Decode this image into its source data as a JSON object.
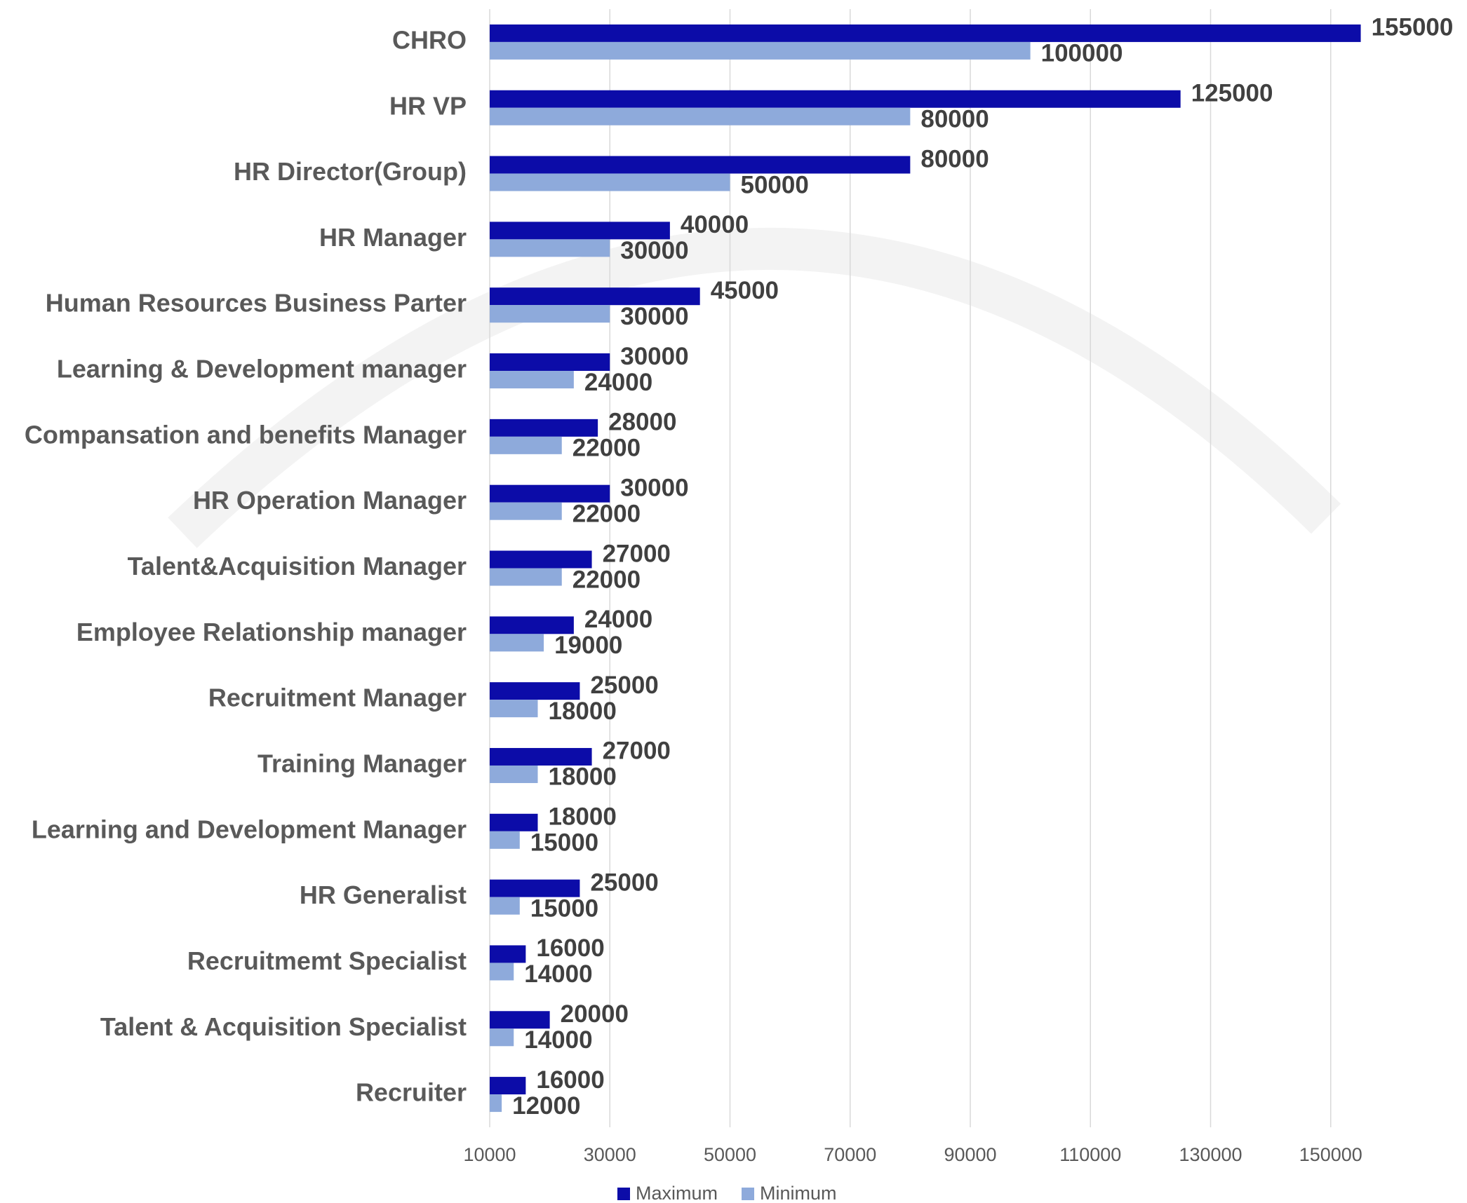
{
  "chart_data": {
    "type": "hbar",
    "categories": [
      "CHRO",
      "HR VP",
      "HR Director(Group)",
      "HR Manager",
      "Human Resources Business Parter",
      "Learning & Development manager",
      "Compansation and benefits Manager",
      "HR Operation Manager",
      "Talent&Acquisition Manager",
      "Employee Relationship manager",
      "Recruitment Manager",
      "Training Manager",
      "Learning and Development Manager",
      "HR Generalist",
      "Recruitmemt Specialist",
      "Talent & Acquisition Specialist",
      "Recruiter"
    ],
    "series": [
      {
        "name": "Maximum",
        "color": "#0c0ca8",
        "values": [
          155000,
          125000,
          80000,
          40000,
          45000,
          30000,
          28000,
          30000,
          27000,
          24000,
          25000,
          27000,
          18000,
          25000,
          16000,
          20000,
          16000
        ]
      },
      {
        "name": "Minimum",
        "color": "#8eaadb",
        "values": [
          100000,
          80000,
          50000,
          30000,
          30000,
          24000,
          22000,
          22000,
          22000,
          19000,
          18000,
          18000,
          15000,
          15000,
          14000,
          14000,
          12000
        ]
      }
    ],
    "xlim": [
      10000,
      170000
    ],
    "xticks": [
      10000,
      30000,
      50000,
      70000,
      90000,
      110000,
      130000,
      150000
    ],
    "grid": true
  }
}
